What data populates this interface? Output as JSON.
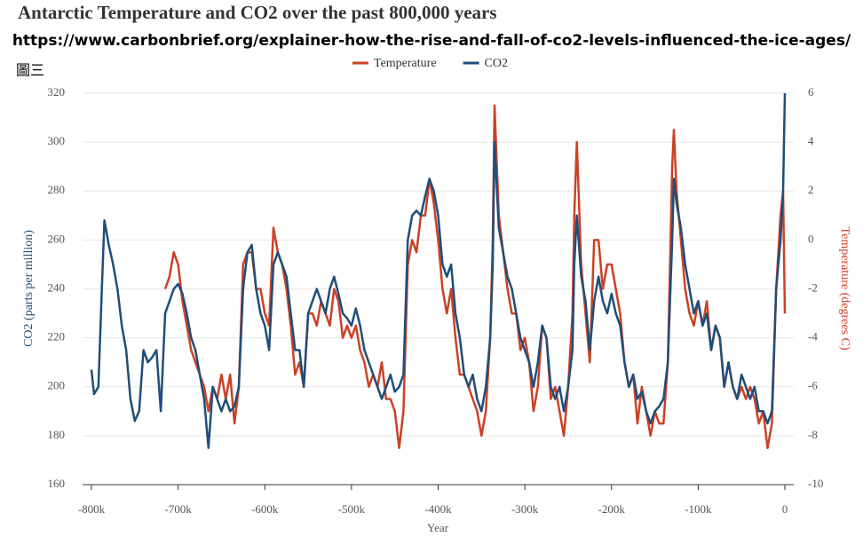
{
  "chart_data": {
    "type": "line",
    "title": "Antarctic Temperature and CO2 over the past 800,000 years",
    "subtitle": "https://www.carbonbrief.org/explainer-how-the-rise-and-fall-of-co2-levels-influenced-the-ice-ages/",
    "annotation": "圖三",
    "x_label": "Year",
    "y_label": "CO2 (parts per million)",
    "y2_label": "Temperature (degrees C)",
    "xlim": [
      -800000,
      0
    ],
    "xticks": [
      {
        "value": -800000,
        "label": "-800k"
      },
      {
        "value": -700000,
        "label": "-700k"
      },
      {
        "value": -600000,
        "label": "-600k"
      },
      {
        "value": -500000,
        "label": "-500k"
      },
      {
        "value": -400000,
        "label": "-400k"
      },
      {
        "value": -300000,
        "label": "-300k"
      },
      {
        "value": -200000,
        "label": "-200k"
      },
      {
        "value": -100000,
        "label": "-100k"
      },
      0
    ],
    "ylim": [
      160,
      320
    ],
    "yticks": [
      160,
      180,
      200,
      220,
      240,
      260,
      280,
      300,
      320
    ],
    "y2lim": [
      -10,
      6
    ],
    "y2ticks": [
      -10,
      -8,
      -6,
      -4,
      -2,
      0,
      2,
      4,
      6
    ],
    "grid": true,
    "legend": "top",
    "series": [
      {
        "name": "Temperature",
        "color": "#cc4125",
        "axis": "y2",
        "x": [
          -715000,
          -710000,
          -705000,
          -700000,
          -695000,
          -690000,
          -685000,
          -680000,
          -675000,
          -670000,
          -665000,
          -660000,
          -655000,
          -650000,
          -645000,
          -640000,
          -635000,
          -630000,
          -625000,
          -620000,
          -615000,
          -610000,
          -605000,
          -600000,
          -595000,
          -590000,
          -585000,
          -580000,
          -575000,
          -570000,
          -565000,
          -560000,
          -555000,
          -550000,
          -545000,
          -540000,
          -535000,
          -530000,
          -525000,
          -520000,
          -515000,
          -510000,
          -505000,
          -500000,
          -495000,
          -490000,
          -485000,
          -480000,
          -475000,
          -470000,
          -465000,
          -460000,
          -455000,
          -450000,
          -445000,
          -440000,
          -435000,
          -430000,
          -425000,
          -420000,
          -415000,
          -410000,
          -405000,
          -400000,
          -395000,
          -390000,
          -385000,
          -380000,
          -375000,
          -370000,
          -365000,
          -360000,
          -355000,
          -350000,
          -345000,
          -340000,
          -337000,
          -335000,
          -330000,
          -325000,
          -320000,
          -315000,
          -310000,
          -305000,
          -300000,
          -295000,
          -290000,
          -285000,
          -280000,
          -275000,
          -270000,
          -265000,
          -260000,
          -255000,
          -250000,
          -245000,
          -243000,
          -240000,
          -235000,
          -230000,
          -225000,
          -220000,
          -215000,
          -210000,
          -205000,
          -200000,
          -195000,
          -190000,
          -185000,
          -180000,
          -175000,
          -170000,
          -165000,
          -160000,
          -155000,
          -150000,
          -145000,
          -140000,
          -135000,
          -130000,
          -128000,
          -125000,
          -120000,
          -115000,
          -110000,
          -105000,
          -100000,
          -95000,
          -90000,
          -85000,
          -80000,
          -75000,
          -70000,
          -65000,
          -60000,
          -55000,
          -50000,
          -45000,
          -40000,
          -35000,
          -30000,
          -25000,
          -20000,
          -15000,
          -10000,
          -5000,
          -2000,
          0
        ],
        "values": [
          -2,
          -1.5,
          -0.5,
          -1,
          -2.5,
          -3.5,
          -4.5,
          -5,
          -5.5,
          -6,
          -7,
          -6,
          -6.5,
          -5.5,
          -6.5,
          -5.5,
          -7.5,
          -6,
          -1,
          -0.5,
          -0.5,
          -2,
          -2,
          -3,
          -3.5,
          0.5,
          -0.5,
          -1,
          -2,
          -3.5,
          -5.5,
          -5,
          -6,
          -3,
          -3,
          -3.5,
          -2.5,
          -3,
          -3.5,
          -2,
          -2.5,
          -4,
          -3.5,
          -4,
          -3.5,
          -4.5,
          -5,
          -6,
          -5.5,
          -6,
          -5,
          -6.5,
          -6.5,
          -7,
          -8.5,
          -7,
          -1,
          0,
          -0.5,
          1,
          1,
          2.5,
          1.5,
          0,
          -2,
          -3,
          -2,
          -4,
          -5.5,
          -5.5,
          -6,
          -6.5,
          -7,
          -8,
          -7,
          -4,
          0,
          5.5,
          1,
          -0.5,
          -2,
          -3,
          -3,
          -4.5,
          -4,
          -5,
          -7,
          -6,
          -3.5,
          -4,
          -6.5,
          -6,
          -7,
          -8,
          -6,
          -3,
          1,
          4,
          -1,
          -3,
          -5,
          0,
          0,
          -2,
          -1,
          -1,
          -2,
          -3,
          -5,
          -6,
          -5.5,
          -7.5,
          -6,
          -7,
          -8,
          -7,
          -7.5,
          -7.5,
          -5,
          3,
          4.5,
          2,
          0,
          -2,
          -3,
          -3.5,
          -2.5,
          -3.5,
          -2.5,
          -4.5,
          -3.5,
          -4,
          -6,
          -5,
          -6,
          -6.5,
          -6,
          -6.5,
          -6,
          -6.5,
          -7.5,
          -7,
          -8.5,
          -7.5,
          -2,
          1,
          2,
          -3
        ]
      },
      {
        "name": "CO2",
        "color": "#1f4e79",
        "x": [
          -800000,
          -797000,
          -792000,
          -788000,
          -785000,
          -780000,
          -775000,
          -770000,
          -765000,
          -760000,
          -755000,
          -750000,
          -745000,
          -740000,
          -735000,
          -730000,
          -725000,
          -720000,
          -715000,
          -710000,
          -705000,
          -700000,
          -695000,
          -690000,
          -685000,
          -680000,
          -675000,
          -670000,
          -665000,
          -660000,
          -655000,
          -650000,
          -645000,
          -640000,
          -635000,
          -630000,
          -625000,
          -620000,
          -615000,
          -610000,
          -605000,
          -600000,
          -595000,
          -590000,
          -585000,
          -580000,
          -575000,
          -570000,
          -565000,
          -560000,
          -555000,
          -550000,
          -545000,
          -540000,
          -535000,
          -530000,
          -525000,
          -520000,
          -515000,
          -510000,
          -505000,
          -500000,
          -495000,
          -490000,
          -485000,
          -480000,
          -475000,
          -470000,
          -465000,
          -460000,
          -455000,
          -450000,
          -445000,
          -440000,
          -435000,
          -430000,
          -425000,
          -420000,
          -415000,
          -410000,
          -405000,
          -400000,
          -395000,
          -390000,
          -385000,
          -380000,
          -375000,
          -370000,
          -365000,
          -360000,
          -355000,
          -350000,
          -345000,
          -340000,
          -337000,
          -335000,
          -330000,
          -325000,
          -320000,
          -315000,
          -310000,
          -305000,
          -300000,
          -295000,
          -290000,
          -285000,
          -280000,
          -275000,
          -270000,
          -265000,
          -260000,
          -255000,
          -250000,
          -245000,
          -243000,
          -240000,
          -235000,
          -230000,
          -225000,
          -220000,
          -215000,
          -210000,
          -205000,
          -200000,
          -195000,
          -190000,
          -185000,
          -180000,
          -175000,
          -170000,
          -165000,
          -160000,
          -155000,
          -150000,
          -145000,
          -140000,
          -135000,
          -130000,
          -128000,
          -125000,
          -120000,
          -115000,
          -110000,
          -105000,
          -100000,
          -95000,
          -90000,
          -85000,
          -80000,
          -75000,
          -70000,
          -65000,
          -60000,
          -55000,
          -50000,
          -45000,
          -40000,
          -35000,
          -30000,
          -25000,
          -20000,
          -15000,
          -10000,
          -5000,
          -2000,
          0
        ],
        "values": [
          207,
          197,
          200,
          240,
          268,
          258,
          250,
          240,
          225,
          215,
          195,
          186,
          190,
          215,
          210,
          212,
          215,
          190,
          230,
          235,
          240,
          242,
          238,
          230,
          220,
          215,
          205,
          195,
          175,
          200,
          195,
          190,
          195,
          190,
          192,
          200,
          240,
          255,
          258,
          240,
          230,
          225,
          215,
          250,
          255,
          250,
          245,
          230,
          215,
          215,
          200,
          230,
          235,
          240,
          235,
          230,
          240,
          245,
          238,
          230,
          228,
          225,
          232,
          225,
          215,
          210,
          205,
          200,
          195,
          200,
          205,
          198,
          200,
          205,
          260,
          270,
          272,
          270,
          278,
          285,
          280,
          270,
          250,
          245,
          250,
          230,
          220,
          205,
          200,
          205,
          195,
          190,
          200,
          220,
          250,
          300,
          265,
          255,
          245,
          240,
          230,
          220,
          215,
          210,
          200,
          210,
          225,
          220,
          200,
          195,
          200,
          190,
          200,
          215,
          250,
          270,
          245,
          235,
          215,
          235,
          245,
          235,
          230,
          238,
          230,
          225,
          210,
          200,
          205,
          195,
          198,
          190,
          185,
          190,
          192,
          195,
          210,
          260,
          285,
          275,
          265,
          250,
          240,
          230,
          235,
          225,
          230,
          215,
          225,
          220,
          200,
          210,
          200,
          195,
          205,
          200,
          195,
          200,
          190,
          190,
          185,
          190,
          240,
          260,
          280,
          320
        ]
      }
    ]
  }
}
